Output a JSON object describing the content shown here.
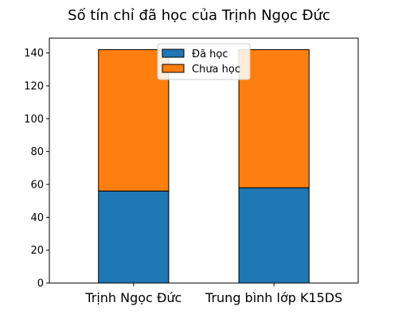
{
  "chart_data": {
    "type": "bar",
    "stacked": true,
    "title": "Số tín chỉ đã học của Trịnh Ngọc Đức",
    "xlabel": "",
    "ylabel": "",
    "categories": [
      "Trịnh Ngọc Đức",
      "Trung bình lớp K15DS"
    ],
    "series": [
      {
        "name": "Đã học",
        "color": "#1f77b4",
        "values": [
          56,
          58
        ]
      },
      {
        "name": "Chưa học",
        "color": "#ff7f0e",
        "values": [
          86,
          84
        ]
      }
    ],
    "ylim": [
      0,
      149
    ],
    "yticks": [
      0,
      20,
      40,
      60,
      80,
      100,
      120,
      140
    ],
    "legend_position": "top-center",
    "grid": false
  }
}
